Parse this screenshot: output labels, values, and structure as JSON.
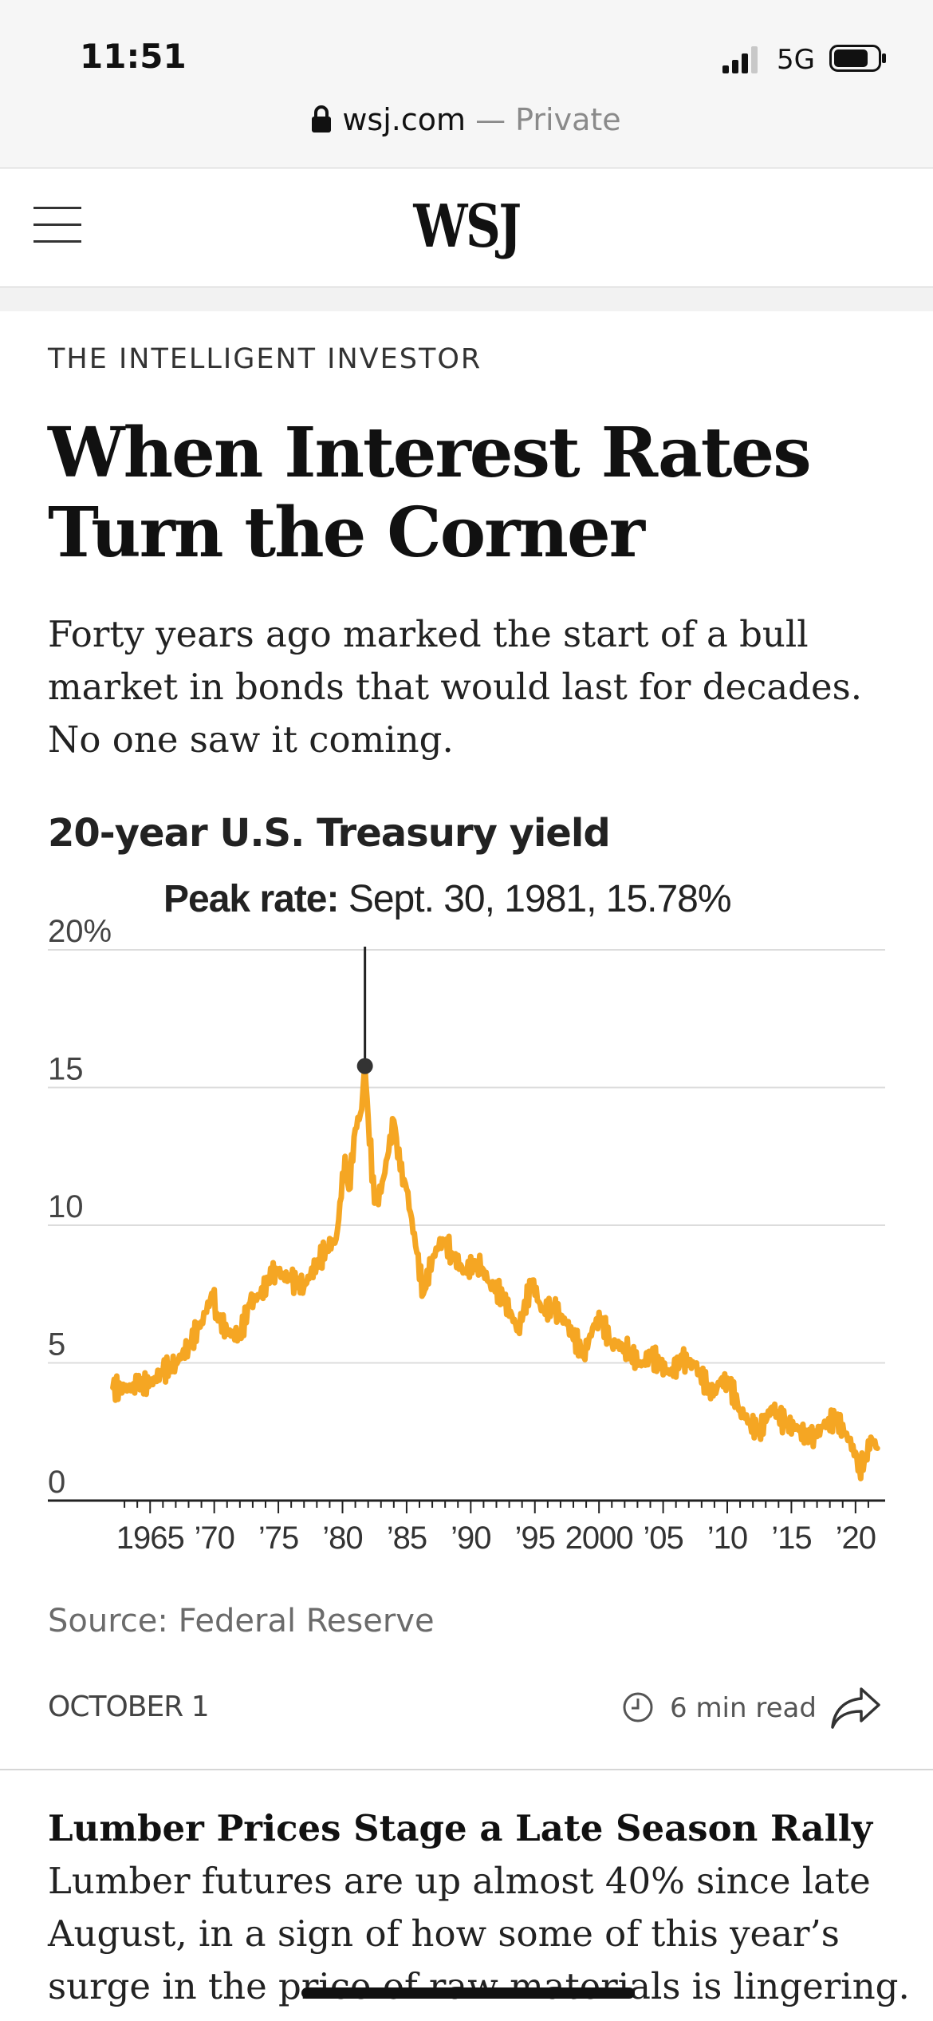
{
  "status_bar": {
    "time": "11:51",
    "network": "5G",
    "url": "wsj.com",
    "url_suffix": " — Private"
  },
  "header": {
    "logo": "WSJ"
  },
  "article": {
    "kicker": "THE INTELLIGENT INVESTOR",
    "headline": "When Interest Rates Turn the Corner",
    "dek": "Forty years ago marked the start of a bull market in bonds that would last for decades. No one saw it coming.",
    "chart_title": "20-year U.S. Treasury yield",
    "source": "Source: Federal Reserve",
    "date": "OCTOBER 1",
    "read_time": "6 min read"
  },
  "chart_data": {
    "type": "line",
    "title": "20-year U.S. Treasury yield",
    "ylim": [
      0,
      20
    ],
    "y_ticks": [
      "20%",
      "15",
      "10",
      "5",
      "0"
    ],
    "x_tick_labels": [
      "1965",
      "’70",
      "’75",
      "’80",
      "’85",
      "’90",
      "’95",
      "2000",
      "’05",
      "’10",
      "’15",
      "’20"
    ],
    "annotation": {
      "label": "Peak rate:",
      "text": " Sept. 30, 1981, 15.78%",
      "x": 1981.75,
      "y": 15.78
    },
    "series": [
      {
        "color": "#f5a623",
        "x": [
          1962.1,
          1963.0,
          1964.0,
          1965.0,
          1966.0,
          1967.0,
          1968.0,
          1969.0,
          1969.9,
          1970.2,
          1971.0,
          1972.0,
          1972.8,
          1973.5,
          1974.5,
          1975.0,
          1976.0,
          1977.0,
          1978.0,
          1978.8,
          1979.5,
          1979.9,
          1980.2,
          1980.5,
          1981.0,
          1981.5,
          1981.75,
          1982.0,
          1982.5,
          1983.0,
          1984.0,
          1984.5,
          1985.0,
          1985.8,
          1986.3,
          1987.0,
          1987.8,
          1988.5,
          1989.5,
          1990.5,
          1991.5,
          1992.5,
          1993.7,
          1994.8,
          1995.5,
          1996.5,
          1997.5,
          1998.8,
          1999.8,
          2000.2,
          2001.0,
          2002.0,
          2003.3,
          2004.0,
          2005.5,
          2006.5,
          2007.5,
          2008.9,
          2009.5,
          2010.2,
          2011.0,
          2011.8,
          2012.5,
          2013.5,
          2014.5,
          2015.5,
          2016.5,
          2017.5,
          2018.5,
          2019.2,
          2019.8,
          2020.3,
          2020.8,
          2021.2,
          2021.7
        ],
        "values": [
          4.1,
          4.0,
          4.2,
          4.25,
          4.7,
          5.0,
          5.6,
          6.5,
          7.5,
          6.8,
          6.1,
          6.0,
          7.2,
          7.4,
          8.2,
          8.3,
          8.0,
          7.8,
          8.6,
          9.2,
          9.5,
          11.0,
          12.5,
          11.3,
          13.5,
          14.2,
          15.78,
          13.9,
          10.8,
          11.2,
          13.8,
          12.0,
          11.3,
          9.0,
          7.5,
          8.8,
          9.5,
          9.0,
          8.3,
          8.7,
          7.9,
          7.4,
          6.2,
          8.0,
          6.9,
          7.0,
          6.4,
          5.3,
          6.6,
          6.5,
          5.7,
          5.6,
          4.9,
          5.3,
          4.6,
          5.1,
          4.9,
          3.8,
          4.4,
          4.2,
          3.3,
          2.8,
          2.5,
          3.4,
          2.8,
          2.6,
          2.2,
          2.7,
          3.0,
          2.4,
          2.0,
          1.2,
          1.5,
          2.3,
          1.9
        ]
      }
    ]
  },
  "next_story": {
    "title": "Lumber Prices Stage a Late Season Rally",
    "summary": " Lumber futures are up almost 40% since late August, in a sign of how some of this year’s surge in the price of raw materials is lingering."
  }
}
